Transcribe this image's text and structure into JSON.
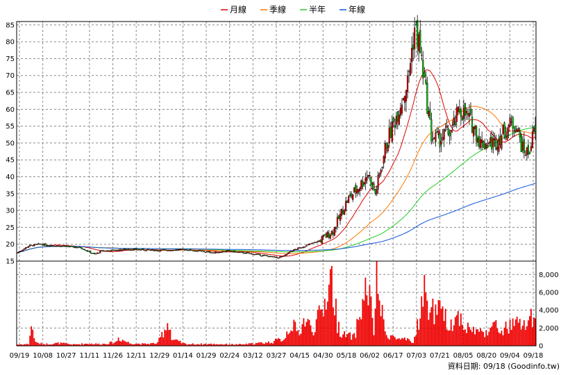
{
  "chart_data": {
    "type": "candlestick",
    "legend": [
      {
        "label": "月線",
        "color": "#dd0000"
      },
      {
        "label": "季線",
        "color": "#ff7700"
      },
      {
        "label": "半年",
        "color": "#22cc22"
      },
      {
        "label": "年線",
        "color": "#1155dd"
      }
    ],
    "price_axis": {
      "min": 15,
      "max": 86,
      "ticks": [
        15,
        20,
        25,
        30,
        35,
        40,
        45,
        50,
        55,
        60,
        65,
        70,
        75,
        80,
        85
      ]
    },
    "volume_axis": {
      "min": 0,
      "max": 9500,
      "ticks": [
        0,
        2000,
        4000,
        6000,
        8000
      ],
      "tick_labels": [
        "0",
        "2,000",
        "4,000",
        "6,000",
        "8,000"
      ]
    },
    "x_labels": [
      "09/19",
      "10/08",
      "10/27",
      "11/11",
      "11/26",
      "12/11",
      "12/29",
      "01/14",
      "01/29",
      "02/24",
      "03/12",
      "03/27",
      "04/15",
      "04/30",
      "05/18",
      "06/02",
      "06/17",
      "07/03",
      "07/21",
      "08/05",
      "08/20",
      "09/04",
      "09/18"
    ],
    "source_note": "資料日期: 09/18 (Goodinfo.tw)",
    "up_color": "#dd0000",
    "down_color": "#00bb00",
    "volume_color": "#ee0000",
    "close_keypoints": [
      [
        0,
        17.5
      ],
      [
        8,
        19.5
      ],
      [
        15,
        20
      ],
      [
        30,
        19.5
      ],
      [
        45,
        19
      ],
      [
        55,
        17
      ],
      [
        60,
        18
      ],
      [
        80,
        18.5
      ],
      [
        100,
        18.2
      ],
      [
        120,
        18.4
      ],
      [
        140,
        17.5
      ],
      [
        150,
        18
      ],
      [
        170,
        17
      ],
      [
        185,
        16
      ],
      [
        190,
        16.5
      ],
      [
        195,
        18
      ],
      [
        205,
        19.5
      ],
      [
        215,
        21
      ],
      [
        225,
        24
      ],
      [
        235,
        33
      ],
      [
        245,
        38
      ],
      [
        250,
        41
      ],
      [
        255,
        35
      ],
      [
        263,
        50
      ],
      [
        270,
        58
      ],
      [
        278,
        68
      ],
      [
        283,
        84
      ],
      [
        286,
        80
      ],
      [
        290,
        68
      ],
      [
        295,
        52
      ],
      [
        300,
        51
      ],
      [
        310,
        54
      ],
      [
        315,
        60
      ],
      [
        320,
        58
      ],
      [
        325,
        55
      ],
      [
        330,
        50
      ],
      [
        340,
        50
      ],
      [
        350,
        55
      ],
      [
        355,
        56
      ],
      [
        360,
        48
      ],
      [
        364,
        47
      ],
      [
        368,
        53
      ]
    ],
    "volume_profile": [
      [
        0,
        150
      ],
      [
        8,
        200
      ],
      [
        10,
        2300
      ],
      [
        12,
        900
      ],
      [
        14,
        300
      ],
      [
        20,
        200
      ],
      [
        30,
        300
      ],
      [
        40,
        150
      ],
      [
        50,
        250
      ],
      [
        60,
        200
      ],
      [
        70,
        400
      ],
      [
        72,
        900
      ],
      [
        80,
        300
      ],
      [
        90,
        200
      ],
      [
        100,
        300
      ],
      [
        108,
        2900
      ],
      [
        110,
        700
      ],
      [
        120,
        200
      ],
      [
        140,
        200
      ],
      [
        160,
        150
      ],
      [
        180,
        400
      ],
      [
        190,
        800
      ],
      [
        195,
        2500
      ],
      [
        200,
        1500
      ],
      [
        205,
        3000
      ],
      [
        210,
        1800
      ],
      [
        218,
        4000
      ],
      [
        222,
        7800
      ],
      [
        224,
        7500
      ],
      [
        228,
        2500
      ],
      [
        232,
        1200
      ],
      [
        240,
        1000
      ],
      [
        248,
        6000
      ],
      [
        250,
        6600
      ],
      [
        254,
        1500
      ],
      [
        256,
        9200
      ],
      [
        258,
        5000
      ],
      [
        262,
        1500
      ],
      [
        270,
        800
      ],
      [
        278,
        600
      ],
      [
        282,
        300
      ],
      [
        290,
        5800
      ],
      [
        295,
        4000
      ],
      [
        300,
        3800
      ],
      [
        305,
        3000
      ],
      [
        310,
        2500
      ],
      [
        315,
        3500
      ],
      [
        320,
        2000
      ],
      [
        325,
        1800
      ],
      [
        330,
        1500
      ],
      [
        335,
        1800
      ],
      [
        340,
        2200
      ],
      [
        345,
        1700
      ],
      [
        350,
        2100
      ],
      [
        355,
        2500
      ],
      [
        360,
        2200
      ],
      [
        365,
        3000
      ],
      [
        368,
        2700
      ]
    ]
  }
}
